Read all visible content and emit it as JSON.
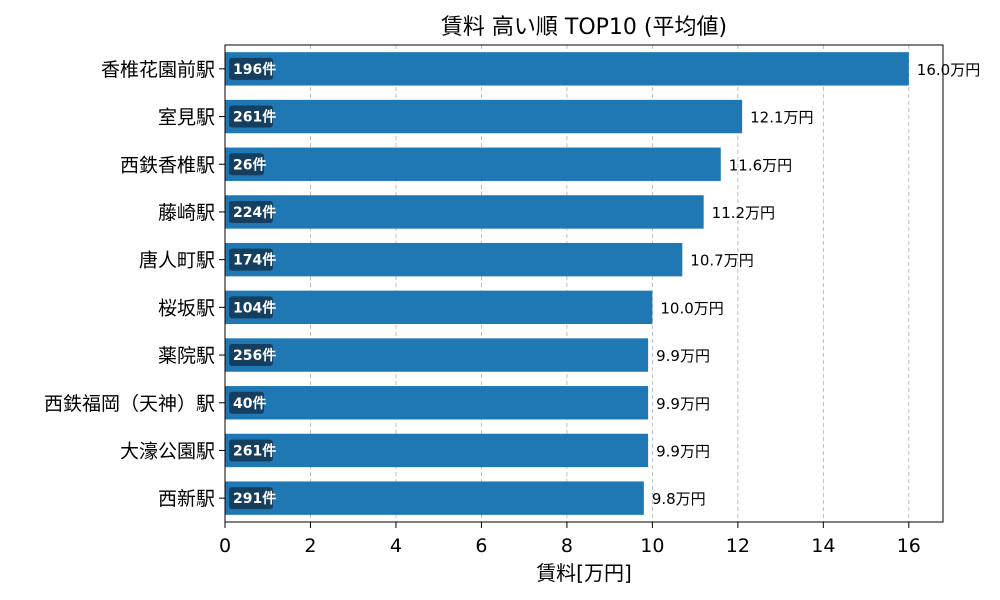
{
  "chart_data": {
    "type": "bar",
    "orientation": "horizontal",
    "title": "賃料 高い順 TOP10 (平均値)",
    "xlabel": "賃料[万円]",
    "ylabel": "",
    "xlim": [
      0,
      16.8
    ],
    "xticks": [
      0,
      2,
      4,
      6,
      8,
      10,
      12,
      14,
      16
    ],
    "grid": "x-dashed",
    "categories": [
      "香椎花園前駅",
      "室見駅",
      "西鉄香椎駅",
      "藤崎駅",
      "唐人町駅",
      "桜坂駅",
      "薬院駅",
      "西鉄福岡（天神）駅",
      "大濠公園駅",
      "西新駅"
    ],
    "values": [
      16.0,
      12.1,
      11.6,
      11.2,
      10.7,
      10.0,
      9.9,
      9.9,
      9.9,
      9.8
    ],
    "value_labels": [
      "16.0万円",
      "12.1万円",
      "11.6万円",
      "11.2万円",
      "10.7万円",
      "10.0万円",
      "9.9万円",
      "9.9万円",
      "9.9万円",
      "9.8万円"
    ],
    "counts": [
      "196件",
      "261件",
      "26件",
      "224件",
      "174件",
      "104件",
      "256件",
      "40件",
      "261件",
      "291件"
    ],
    "colors": {
      "bar": "#1f77b4",
      "count_badge": "#163f5f"
    }
  }
}
